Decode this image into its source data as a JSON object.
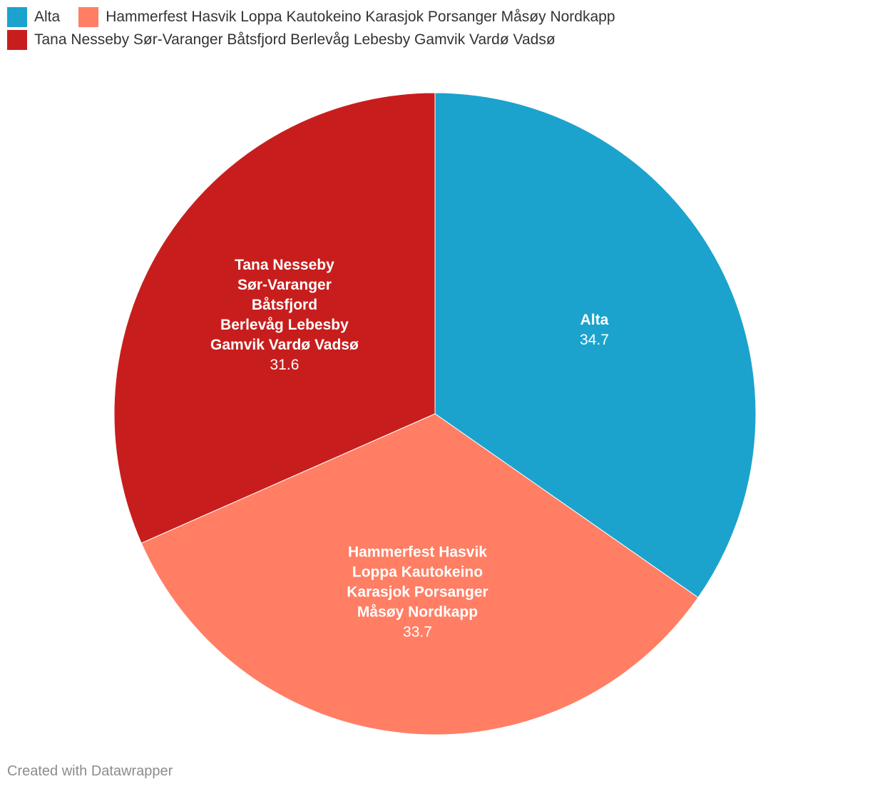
{
  "chart_data": {
    "type": "pie",
    "categories": [
      "Alta",
      "Hammerfest Hasvik Loppa Kautokeino Karasjok Porsanger Måsøy Nordkapp",
      "Tana Nesseby Sør-Varanger Båtsfjord Berlevåg Lebesby Gamvik Vardø Vadsø"
    ],
    "values": [
      34.7,
      33.7,
      31.6
    ],
    "value_labels": [
      "34.7",
      "33.7",
      "31.6"
    ],
    "slice_label_lines": [
      [
        "Alta"
      ],
      [
        "Hammerfest Hasvik",
        "Loppa Kautokeino",
        "Karasjok Porsanger",
        "Måsøy Nordkapp"
      ],
      [
        "Tana Nesseby",
        "Sør-Varanger",
        "Båtsfjord",
        "Berlevåg Lebesby",
        "Gamvik Vardø Vadsø"
      ]
    ],
    "colors": [
      "#1ba3cd",
      "#ff7e64",
      "#c71e1d"
    ],
    "start_angle": "top",
    "direction": "clockwise",
    "legend_position": "top-left"
  },
  "legend": {
    "rows": [
      [
        {
          "label": "Alta",
          "color": "#1ba3cd"
        },
        {
          "label": "Hammerfest Hasvik Loppa Kautokeino Karasjok Porsanger Måsøy Nordkapp",
          "color": "#ff7e64"
        }
      ],
      [
        {
          "label": "Tana Nesseby Sør-Varanger Båtsfjord Berlevåg Lebesby Gamvik Vardø Vadsø",
          "color": "#c71e1d"
        }
      ]
    ]
  },
  "footer": {
    "credit": "Created with Datawrapper"
  }
}
